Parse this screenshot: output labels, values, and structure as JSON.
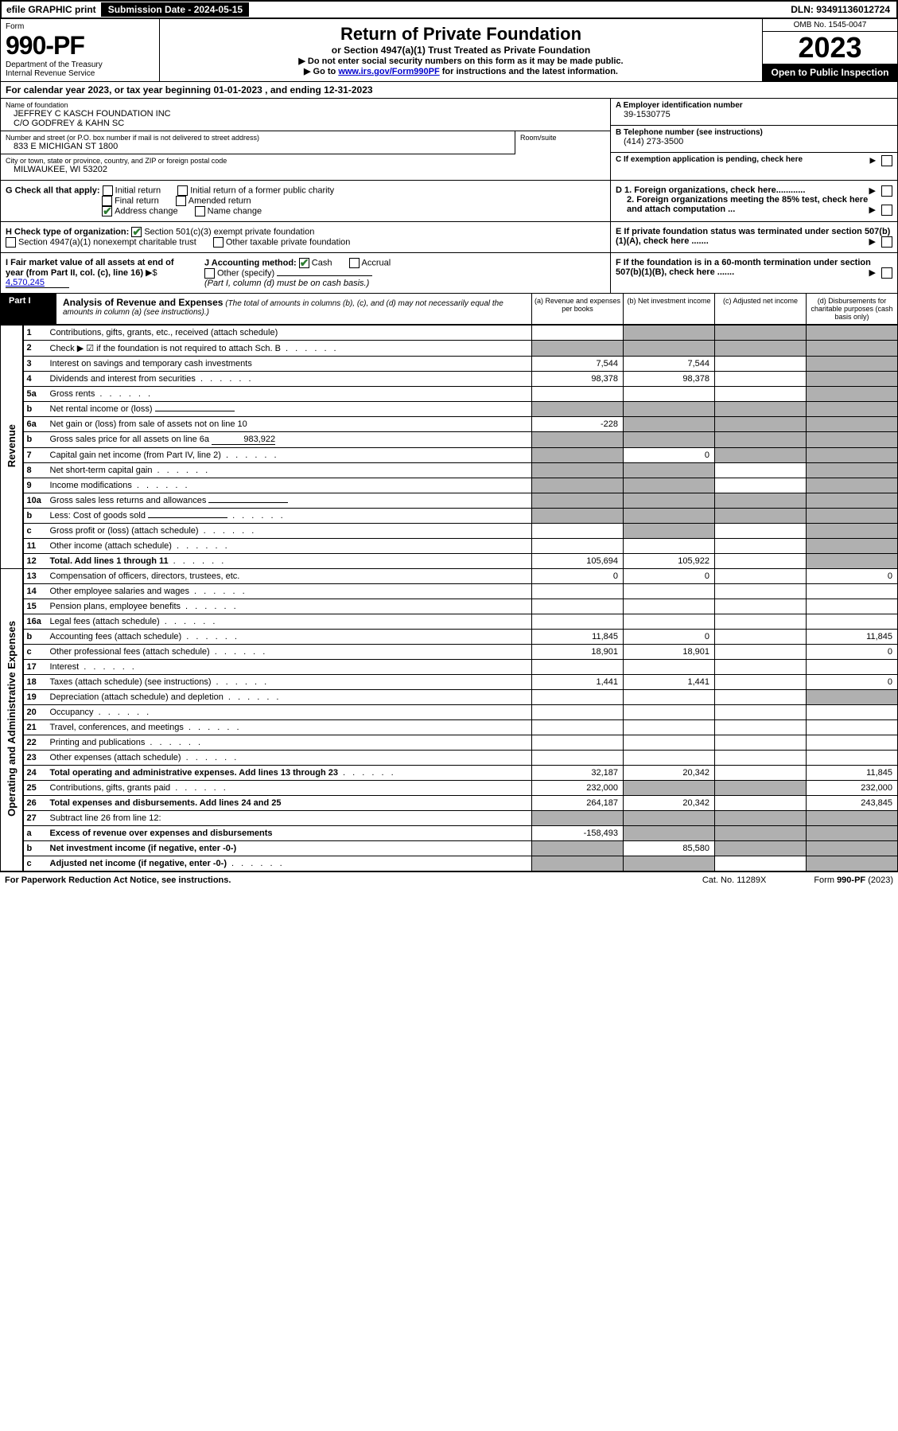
{
  "topbar": {
    "efile": "efile GRAPHIC print",
    "submission": "Submission Date - 2024-05-15",
    "dln": "DLN: 93491136012724"
  },
  "header": {
    "form_label": "Form",
    "form_no": "990-PF",
    "dept": "Department of the Treasury",
    "irs": "Internal Revenue Service",
    "title": "Return of Private Foundation",
    "subtitle": "or Section 4947(a)(1) Trust Treated as Private Foundation",
    "note1": "▶ Do not enter social security numbers on this form as it may be made public.",
    "note2_pre": "▶ Go to ",
    "note2_link": "www.irs.gov/Form990PF",
    "note2_post": " for instructions and the latest information.",
    "omb": "OMB No. 1545-0047",
    "year": "2023",
    "open": "Open to Public Inspection"
  },
  "cal_year": "For calendar year 2023, or tax year beginning 01-01-2023                              , and ending 12-31-2023",
  "entity": {
    "name_label": "Name of foundation",
    "name1": "JEFFREY C KASCH FOUNDATION INC",
    "name2": "C/O GODFREY & KAHN SC",
    "addr_label": "Number and street (or P.O. box number if mail is not delivered to street address)",
    "addr": "833 E MICHIGAN ST 1800",
    "room_label": "Room/suite",
    "city_label": "City or town, state or province, country, and ZIP or foreign postal code",
    "city": "MILWAUKEE, WI  53202",
    "ein_label": "A Employer identification number",
    "ein": "39-1530775",
    "phone_label": "B Telephone number (see instructions)",
    "phone": "(414) 273-3500",
    "c_label": "C If exemption application is pending, check here",
    "d1": "D 1. Foreign organizations, check here............",
    "d2": "2. Foreign organizations meeting the 85% test, check here and attach computation ...",
    "e": "E  If private foundation status was terminated under section 507(b)(1)(A), check here .......",
    "f": "F  If the foundation is in a 60-month termination under section 507(b)(1)(B), check here .......",
    "g_label": "G Check all that apply:",
    "g_initial": "Initial return",
    "g_initial_former": "Initial return of a former public charity",
    "g_final": "Final return",
    "g_amended": "Amended return",
    "g_addr": "Address change",
    "g_name": "Name change",
    "h_label": "H Check type of organization:",
    "h_501c3": "Section 501(c)(3) exempt private foundation",
    "h_4947": "Section 4947(a)(1) nonexempt charitable trust",
    "h_other": "Other taxable private foundation",
    "i_label": "I Fair market value of all assets at end of year (from Part II, col. (c), line 16)",
    "i_value": "4,570,245",
    "j_label": "J Accounting method:",
    "j_cash": "Cash",
    "j_accrual": "Accrual",
    "j_other": "Other (specify)",
    "j_note": "(Part I, column (d) must be on cash basis.)"
  },
  "part1": {
    "label": "Part I",
    "title": "Analysis of Revenue and Expenses",
    "title_note": "(The total of amounts in columns (b), (c), and (d) may not necessarily equal the amounts in column (a) (see instructions).)",
    "col_a": "(a) Revenue and expenses per books",
    "col_b": "(b) Net investment income",
    "col_c": "(c) Adjusted net income",
    "col_d": "(d) Disbursements for charitable purposes (cash basis only)"
  },
  "sections": {
    "revenue": "Revenue",
    "op_admin": "Operating and Administrative Expenses"
  },
  "rows": [
    {
      "ln": "1",
      "desc": "Contributions, gifts, grants, etc., received (attach schedule)",
      "a": "",
      "b": "shaded",
      "c": "shaded",
      "d": "shaded"
    },
    {
      "ln": "2",
      "desc": "Check ▶ ☑ if the foundation is not required to attach Sch. B",
      "a": "shaded",
      "b": "shaded",
      "c": "shaded",
      "d": "shaded",
      "dots": true
    },
    {
      "ln": "3",
      "desc": "Interest on savings and temporary cash investments",
      "a": "7,544",
      "b": "7,544",
      "c": "",
      "d": "shaded"
    },
    {
      "ln": "4",
      "desc": "Dividends and interest from securities",
      "a": "98,378",
      "b": "98,378",
      "c": "",
      "d": "shaded",
      "dots": true
    },
    {
      "ln": "5a",
      "desc": "Gross rents",
      "a": "",
      "b": "",
      "c": "",
      "d": "shaded",
      "dots": true
    },
    {
      "ln": "b",
      "desc": "Net rental income or (loss)",
      "a": "shaded",
      "b": "shaded",
      "c": "shaded",
      "d": "shaded",
      "inline_blank": true
    },
    {
      "ln": "6a",
      "desc": "Net gain or (loss) from sale of assets not on line 10",
      "a": "-228",
      "b": "shaded",
      "c": "shaded",
      "d": "shaded"
    },
    {
      "ln": "b",
      "desc": "Gross sales price for all assets on line 6a",
      "a": "shaded",
      "b": "shaded",
      "c": "shaded",
      "d": "shaded",
      "inline_val": "983,922"
    },
    {
      "ln": "7",
      "desc": "Capital gain net income (from Part IV, line 2)",
      "a": "shaded",
      "b": "0",
      "c": "shaded",
      "d": "shaded",
      "dots": true
    },
    {
      "ln": "8",
      "desc": "Net short-term capital gain",
      "a": "shaded",
      "b": "shaded",
      "c": "",
      "d": "shaded",
      "dots": true
    },
    {
      "ln": "9",
      "desc": "Income modifications",
      "a": "shaded",
      "b": "shaded",
      "c": "",
      "d": "shaded",
      "dots": true
    },
    {
      "ln": "10a",
      "desc": "Gross sales less returns and allowances",
      "a": "shaded",
      "b": "shaded",
      "c": "shaded",
      "d": "shaded",
      "inline_blank": true
    },
    {
      "ln": "b",
      "desc": "Less: Cost of goods sold",
      "a": "shaded",
      "b": "shaded",
      "c": "shaded",
      "d": "shaded",
      "inline_blank": true,
      "dots": true
    },
    {
      "ln": "c",
      "desc": "Gross profit or (loss) (attach schedule)",
      "a": "",
      "b": "shaded",
      "c": "",
      "d": "shaded",
      "dots": true
    },
    {
      "ln": "11",
      "desc": "Other income (attach schedule)",
      "a": "",
      "b": "",
      "c": "",
      "d": "shaded",
      "dots": true
    },
    {
      "ln": "12",
      "desc": "Total. Add lines 1 through 11",
      "a": "105,694",
      "b": "105,922",
      "c": "",
      "d": "shaded",
      "bold": true,
      "dots": true
    },
    {
      "ln": "13",
      "desc": "Compensation of officers, directors, trustees, etc.",
      "a": "0",
      "b": "0",
      "c": "",
      "d": "0"
    },
    {
      "ln": "14",
      "desc": "Other employee salaries and wages",
      "a": "",
      "b": "",
      "c": "",
      "d": "",
      "dots": true
    },
    {
      "ln": "15",
      "desc": "Pension plans, employee benefits",
      "a": "",
      "b": "",
      "c": "",
      "d": "",
      "dots": true
    },
    {
      "ln": "16a",
      "desc": "Legal fees (attach schedule)",
      "a": "",
      "b": "",
      "c": "",
      "d": "",
      "dots": true
    },
    {
      "ln": "b",
      "desc": "Accounting fees (attach schedule)",
      "a": "11,845",
      "b": "0",
      "c": "",
      "d": "11,845",
      "dots": true
    },
    {
      "ln": "c",
      "desc": "Other professional fees (attach schedule)",
      "a": "18,901",
      "b": "18,901",
      "c": "",
      "d": "0",
      "dots": true
    },
    {
      "ln": "17",
      "desc": "Interest",
      "a": "",
      "b": "",
      "c": "",
      "d": "",
      "dots": true
    },
    {
      "ln": "18",
      "desc": "Taxes (attach schedule) (see instructions)",
      "a": "1,441",
      "b": "1,441",
      "c": "",
      "d": "0",
      "dots": true
    },
    {
      "ln": "19",
      "desc": "Depreciation (attach schedule) and depletion",
      "a": "",
      "b": "",
      "c": "",
      "d": "shaded",
      "dots": true
    },
    {
      "ln": "20",
      "desc": "Occupancy",
      "a": "",
      "b": "",
      "c": "",
      "d": "",
      "dots": true
    },
    {
      "ln": "21",
      "desc": "Travel, conferences, and meetings",
      "a": "",
      "b": "",
      "c": "",
      "d": "",
      "dots": true
    },
    {
      "ln": "22",
      "desc": "Printing and publications",
      "a": "",
      "b": "",
      "c": "",
      "d": "",
      "dots": true
    },
    {
      "ln": "23",
      "desc": "Other expenses (attach schedule)",
      "a": "",
      "b": "",
      "c": "",
      "d": "",
      "dots": true
    },
    {
      "ln": "24",
      "desc": "Total operating and administrative expenses. Add lines 13 through 23",
      "a": "32,187",
      "b": "20,342",
      "c": "",
      "d": "11,845",
      "bold": true,
      "dots": true
    },
    {
      "ln": "25",
      "desc": "Contributions, gifts, grants paid",
      "a": "232,000",
      "b": "shaded",
      "c": "shaded",
      "d": "232,000",
      "dots": true
    },
    {
      "ln": "26",
      "desc": "Total expenses and disbursements. Add lines 24 and 25",
      "a": "264,187",
      "b": "20,342",
      "c": "",
      "d": "243,845",
      "bold": true
    },
    {
      "ln": "27",
      "desc": "Subtract line 26 from line 12:",
      "a": "shaded",
      "b": "shaded",
      "c": "shaded",
      "d": "shaded"
    },
    {
      "ln": "a",
      "desc": "Excess of revenue over expenses and disbursements",
      "a": "-158,493",
      "b": "shaded",
      "c": "shaded",
      "d": "shaded",
      "bold": true
    },
    {
      "ln": "b",
      "desc": "Net investment income (if negative, enter -0-)",
      "a": "shaded",
      "b": "85,580",
      "c": "shaded",
      "d": "shaded",
      "bold": true
    },
    {
      "ln": "c",
      "desc": "Adjusted net income (if negative, enter -0-)",
      "a": "shaded",
      "b": "shaded",
      "c": "",
      "d": "shaded",
      "bold": true,
      "dots": true
    }
  ],
  "footer": {
    "left": "For Paperwork Reduction Act Notice, see instructions.",
    "mid": "Cat. No. 11289X",
    "right": "Form 990-PF (2023)"
  },
  "colors": {
    "shaded": "#b0b0b0",
    "link": "#0000cc",
    "check": "#2e7d32"
  }
}
